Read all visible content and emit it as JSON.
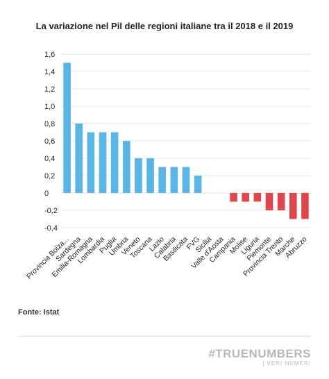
{
  "chart_data": {
    "type": "bar",
    "title": "La variazione nel Pil delle regioni italiane tra il 2018 e il 2019",
    "xlabel": "",
    "ylabel": "",
    "ylim": [
      -0.4,
      1.6
    ],
    "yticks": [
      "1,6",
      "1,4",
      "1,2",
      "1,0",
      "0,8",
      "0,6",
      "0,4",
      "0,2",
      "0",
      "-0,2",
      "-0,4"
    ],
    "ytick_values": [
      1.6,
      1.4,
      1.2,
      1.0,
      0.8,
      0.6,
      0.4,
      0.2,
      0,
      -0.2,
      -0.4
    ],
    "categories": [
      "Provincia Bolza...",
      "Sardegna",
      "Emilia-Romagna",
      "Lombardia",
      "Puglia",
      "Umbria",
      "Veneto",
      "Toscana",
      "Lazio",
      "Calabria",
      "Basilicata",
      "FVG",
      "Sicilia",
      "Valle d'Aosta",
      "Campania",
      "Molise",
      "Liguria",
      "Piemonte",
      "Provincia Trento",
      "Marche",
      "Abruzzo"
    ],
    "values": [
      1.5,
      0.8,
      0.7,
      0.7,
      0.7,
      0.6,
      0.4,
      0.4,
      0.3,
      0.3,
      0.3,
      0.2,
      0,
      0,
      -0.1,
      -0.1,
      -0.1,
      -0.2,
      -0.2,
      -0.3,
      -0.3
    ],
    "grid": true,
    "colors": {
      "positive": "#5ab4e5",
      "negative": "#e0474c",
      "grid": "#e6e6e6",
      "text": "#222222"
    }
  },
  "footer": {
    "source": "Fonte: Istat",
    "brand_main": "#TRUENUMBERS",
    "brand_sub": "| VERI NUMERI"
  }
}
